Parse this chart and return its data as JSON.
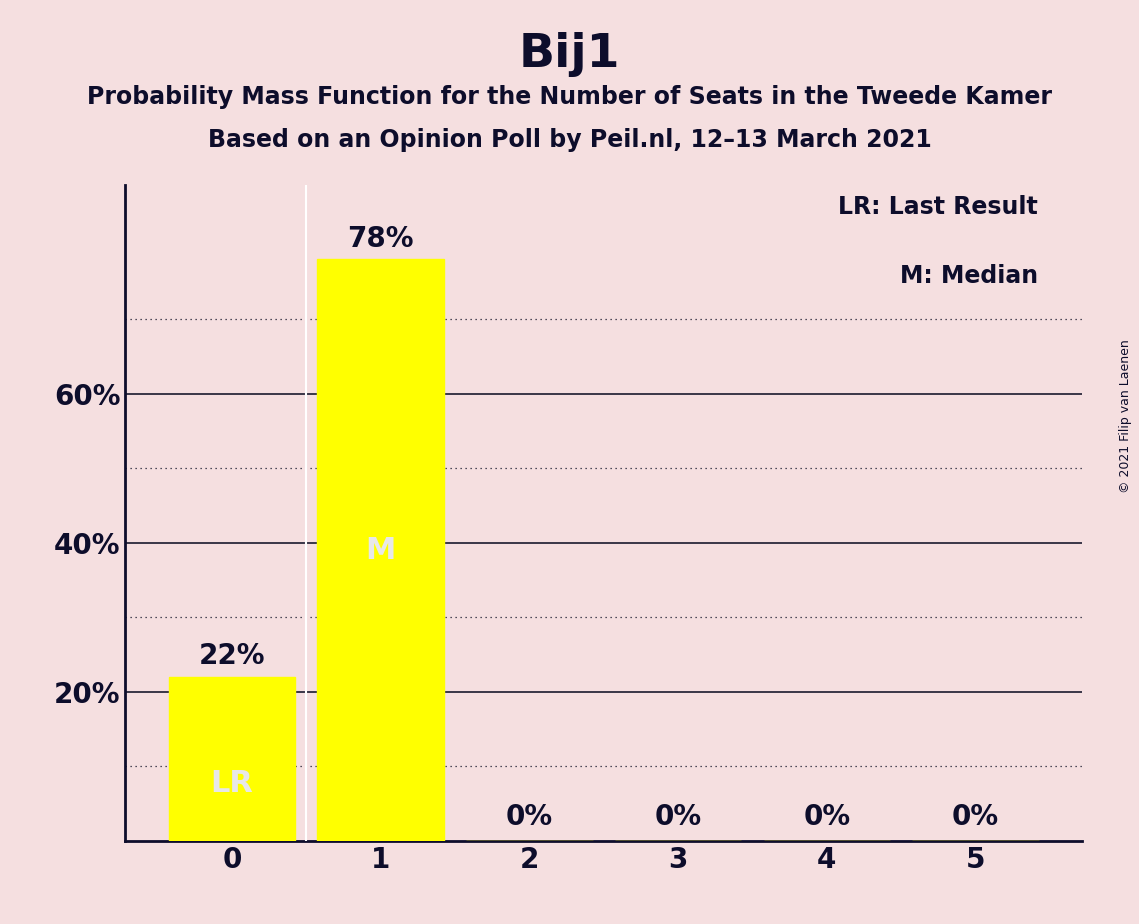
{
  "title": "Bij1",
  "subtitle1": "Probability Mass Function for the Number of Seats in the Tweede Kamer",
  "subtitle2": "Based on an Opinion Poll by Peil.nl, 12–13 March 2021",
  "copyright": "© 2021 Filip van Laenen",
  "categories": [
    0,
    1,
    2,
    3,
    4,
    5
  ],
  "values": [
    0.22,
    0.78,
    0.0,
    0.0,
    0.0,
    0.0
  ],
  "bar_color": "#ffff00",
  "bar_labels": [
    "22%",
    "78%",
    "0%",
    "0%",
    "0%",
    "0%"
  ],
  "lr_seat": 0,
  "median_seat": 1,
  "lr_label": "LR",
  "median_label": "M",
  "legend_lr": "LR: Last Result",
  "legend_m": "M: Median",
  "background_color": "#f5dfe0",
  "text_color": "#0d0d2b",
  "bar_text_color": "#e8e8e8",
  "ylim": [
    0,
    0.88
  ],
  "grid_color": "#1a1a2e",
  "title_fontsize": 34,
  "subtitle_fontsize": 17,
  "axis_tick_fontsize": 20,
  "bar_label_fontsize": 20,
  "inside_label_fontsize": 22,
  "legend_fontsize": 17,
  "copyright_fontsize": 9
}
